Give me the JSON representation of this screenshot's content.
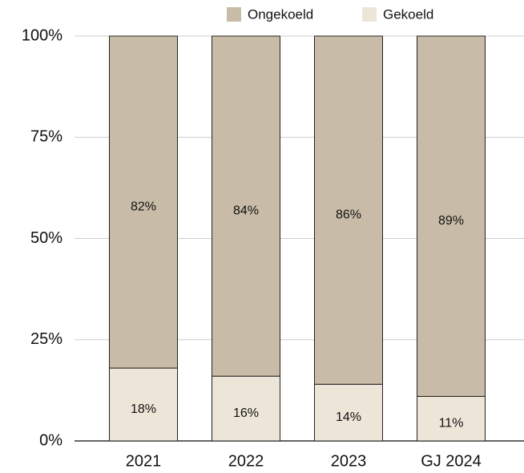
{
  "chart_data": {
    "type": "stacked_bar",
    "categories": [
      "2021",
      "2022",
      "2023",
      "GJ 2024"
    ],
    "series": [
      {
        "name": "Gekoeld",
        "color": "#ede6d8",
        "values": [
          18,
          16,
          14,
          11
        ],
        "value_labels": [
          "18%",
          "16%",
          "14%",
          "11%"
        ]
      },
      {
        "name": "Ongekoeld",
        "color": "#c8bca8",
        "values": [
          82,
          84,
          86,
          89
        ],
        "value_labels": [
          "82%",
          "84%",
          "86%",
          "89%"
        ]
      }
    ],
    "legend_order": [
      "Ongekoeld",
      "Gekoeld"
    ],
    "ylim": [
      0,
      100
    ],
    "yticks": [
      {
        "value": 0,
        "label": "0%"
      },
      {
        "value": 25,
        "label": "25%"
      },
      {
        "value": 50,
        "label": "50%"
      },
      {
        "value": 75,
        "label": "75%"
      },
      {
        "value": 100,
        "label": "100%"
      }
    ],
    "grid": true,
    "legend": "top"
  }
}
